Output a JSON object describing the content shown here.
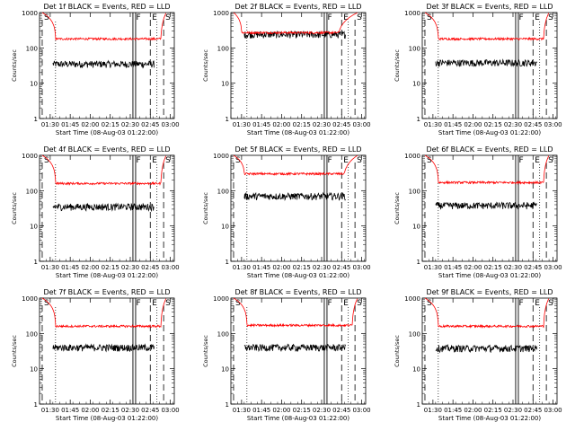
{
  "figure": {
    "xlabel": "Start Time (08-Aug-03 01:22:00)",
    "ylabel": "Counts/sec"
  },
  "chart_data": [
    {
      "type": "line",
      "title": "Det 1f BLACK = Events, RED = LLD",
      "detector": "1f",
      "xlim": [
        "01:22",
        "03:03"
      ],
      "x_ticks": [
        "01:30",
        "01:45",
        "02:00",
        "02:15",
        "02:30",
        "02:45",
        "03:00"
      ],
      "ylim": [
        1,
        1000
      ],
      "yscale": "log",
      "y_ticks": [
        "1",
        "10",
        "100",
        "1000"
      ],
      "series": [
        {
          "name": "Events",
          "color": "#000000",
          "approx_level": 35
        },
        {
          "name": "LLD",
          "color": "#ff0000",
          "approx_level": 180,
          "flat_from": "01:34",
          "flat_to": "02:53"
        }
      ],
      "markers": [
        {
          "label": "S",
          "time": "01:24"
        },
        {
          "label": "F",
          "time": "02:33"
        },
        {
          "label": "E",
          "time": "02:45"
        },
        {
          "label": "S",
          "time": "02:55"
        }
      ]
    },
    {
      "type": "line",
      "title": "Det 2f BLACK = Events, RED = LLD",
      "detector": "2f",
      "xlim": [
        "01:22",
        "03:03"
      ],
      "x_ticks": [
        "01:30",
        "01:45",
        "02:00",
        "02:15",
        "02:30",
        "02:45",
        "03:00"
      ],
      "ylim": [
        1,
        1000
      ],
      "yscale": "log",
      "y_ticks": [
        "1",
        "10",
        "100",
        "1000"
      ],
      "series": [
        {
          "name": "Events",
          "color": "#000000",
          "approx_level": 240
        },
        {
          "name": "LLD",
          "color": "#ff0000",
          "approx_level": 270,
          "flat_from": "01:30",
          "flat_to": "02:43"
        }
      ],
      "markers": [
        {
          "label": "F",
          "time": "02:33"
        },
        {
          "label": "E",
          "time": "02:45"
        },
        {
          "label": "S",
          "time": "02:55"
        }
      ]
    },
    {
      "type": "line",
      "title": "Det 3f BLACK = Events, RED = LLD",
      "detector": "3f",
      "xlim": [
        "01:22",
        "03:03"
      ],
      "x_ticks": [
        "01:30",
        "01:45",
        "02:00",
        "02:15",
        "02:30",
        "02:45",
        "03:00"
      ],
      "ylim": [
        1,
        1000
      ],
      "yscale": "log",
      "y_ticks": [
        "1",
        "10",
        "100",
        "1000"
      ],
      "series": [
        {
          "name": "Events",
          "color": "#000000",
          "approx_level": 38
        },
        {
          "name": "LLD",
          "color": "#ff0000",
          "approx_level": 180,
          "flat_from": "01:34",
          "flat_to": "02:53"
        }
      ],
      "markers": [
        {
          "label": "S",
          "time": "01:24"
        },
        {
          "label": "F",
          "time": "02:33"
        },
        {
          "label": "E",
          "time": "02:45"
        },
        {
          "label": "S",
          "time": "02:55"
        }
      ]
    },
    {
      "type": "line",
      "title": "Det 4f BLACK = Events, RED = LLD",
      "detector": "4f",
      "xlim": [
        "01:22",
        "03:03"
      ],
      "x_ticks": [
        "01:30",
        "01:45",
        "02:00",
        "02:15",
        "02:30",
        "02:45",
        "03:00"
      ],
      "ylim": [
        1,
        1000
      ],
      "yscale": "log",
      "y_ticks": [
        "1",
        "10",
        "100",
        "1000"
      ],
      "series": [
        {
          "name": "Events",
          "color": "#000000",
          "approx_level": 35
        },
        {
          "name": "LLD",
          "color": "#ff0000",
          "approx_level": 160,
          "flat_from": "01:34",
          "flat_to": "02:53"
        }
      ],
      "markers": [
        {
          "label": "S",
          "time": "01:24"
        },
        {
          "label": "F",
          "time": "02:33"
        },
        {
          "label": "E",
          "time": "02:45"
        },
        {
          "label": "S",
          "time": "02:55"
        }
      ]
    },
    {
      "type": "line",
      "title": "Det 5f BLACK = Events, RED = LLD",
      "detector": "5f",
      "xlim": [
        "01:22",
        "03:03"
      ],
      "x_ticks": [
        "01:30",
        "01:45",
        "02:00",
        "02:15",
        "02:30",
        "02:45",
        "03:00"
      ],
      "ylim": [
        1,
        1000
      ],
      "yscale": "log",
      "y_ticks": [
        "1",
        "10",
        "100",
        "1000"
      ],
      "series": [
        {
          "name": "Events",
          "color": "#000000",
          "approx_level": 70
        },
        {
          "name": "LLD",
          "color": "#ff0000",
          "approx_level": 300,
          "flat_from": "01:32",
          "flat_to": "02:47"
        }
      ],
      "markers": [
        {
          "label": "S",
          "time": "01:24"
        },
        {
          "label": "F",
          "time": "02:33"
        },
        {
          "label": "E",
          "time": "02:45"
        },
        {
          "label": "S",
          "time": "02:55"
        }
      ]
    },
    {
      "type": "line",
      "title": "Det 6f BLACK = Events, RED = LLD",
      "detector": "6f",
      "xlim": [
        "01:22",
        "03:03"
      ],
      "x_ticks": [
        "01:30",
        "01:45",
        "02:00",
        "02:15",
        "02:30",
        "02:45",
        "03:00"
      ],
      "ylim": [
        1,
        1000
      ],
      "yscale": "log",
      "y_ticks": [
        "1",
        "10",
        "100",
        "1000"
      ],
      "series": [
        {
          "name": "Events",
          "color": "#000000",
          "approx_level": 38
        },
        {
          "name": "LLD",
          "color": "#ff0000",
          "approx_level": 170,
          "flat_from": "01:34",
          "flat_to": "02:53"
        }
      ],
      "markers": [
        {
          "label": "S",
          "time": "01:24"
        },
        {
          "label": "F",
          "time": "02:33"
        },
        {
          "label": "E",
          "time": "02:45"
        },
        {
          "label": "S",
          "time": "02:55"
        }
      ]
    },
    {
      "type": "line",
      "title": "Det 7f BLACK = Events, RED = LLD",
      "detector": "7f",
      "xlim": [
        "01:22",
        "03:03"
      ],
      "x_ticks": [
        "01:30",
        "01:45",
        "02:00",
        "02:15",
        "02:30",
        "02:45",
        "03:00"
      ],
      "ylim": [
        1,
        1000
      ],
      "yscale": "log",
      "y_ticks": [
        "1",
        "10",
        "100",
        "1000"
      ],
      "series": [
        {
          "name": "Events",
          "color": "#000000",
          "approx_level": 40
        },
        {
          "name": "LLD",
          "color": "#ff0000",
          "approx_level": 160,
          "flat_from": "01:34",
          "flat_to": "02:53"
        }
      ],
      "markers": [
        {
          "label": "S",
          "time": "01:24"
        },
        {
          "label": "F",
          "time": "02:33"
        },
        {
          "label": "E",
          "time": "02:45"
        },
        {
          "label": "S",
          "time": "02:55"
        }
      ]
    },
    {
      "type": "line",
      "title": "Det 8f BLACK = Events, RED = LLD",
      "detector": "8f",
      "xlim": [
        "01:22",
        "03:03"
      ],
      "x_ticks": [
        "01:30",
        "01:45",
        "02:00",
        "02:15",
        "02:30",
        "02:45",
        "03:00"
      ],
      "ylim": [
        1,
        1000
      ],
      "yscale": "log",
      "y_ticks": [
        "1",
        "10",
        "100",
        "1000"
      ],
      "series": [
        {
          "name": "Events",
          "color": "#000000",
          "approx_level": 40
        },
        {
          "name": "LLD",
          "color": "#ff0000",
          "approx_level": 170,
          "flat_from": "01:34",
          "flat_to": "02:53"
        }
      ],
      "markers": [
        {
          "label": "S",
          "time": "01:24"
        },
        {
          "label": "F",
          "time": "02:33"
        },
        {
          "label": "E",
          "time": "02:45"
        },
        {
          "label": "S",
          "time": "02:55"
        }
      ]
    },
    {
      "type": "line",
      "title": "Det 9f BLACK = Events, RED = LLD",
      "detector": "9f",
      "xlim": [
        "01:22",
        "03:03"
      ],
      "x_ticks": [
        "01:30",
        "01:45",
        "02:00",
        "02:15",
        "02:30",
        "02:45",
        "03:00"
      ],
      "ylim": [
        1,
        1000
      ],
      "yscale": "log",
      "y_ticks": [
        "1",
        "10",
        "100",
        "1000"
      ],
      "series": [
        {
          "name": "Events",
          "color": "#000000",
          "approx_level": 38
        },
        {
          "name": "LLD",
          "color": "#ff0000",
          "approx_level": 160,
          "flat_from": "01:34",
          "flat_to": "02:53"
        }
      ],
      "markers": [
        {
          "label": "S",
          "time": "01:24"
        },
        {
          "label": "F",
          "time": "02:33"
        },
        {
          "label": "E",
          "time": "02:45"
        },
        {
          "label": "S",
          "time": "02:55"
        }
      ]
    }
  ]
}
